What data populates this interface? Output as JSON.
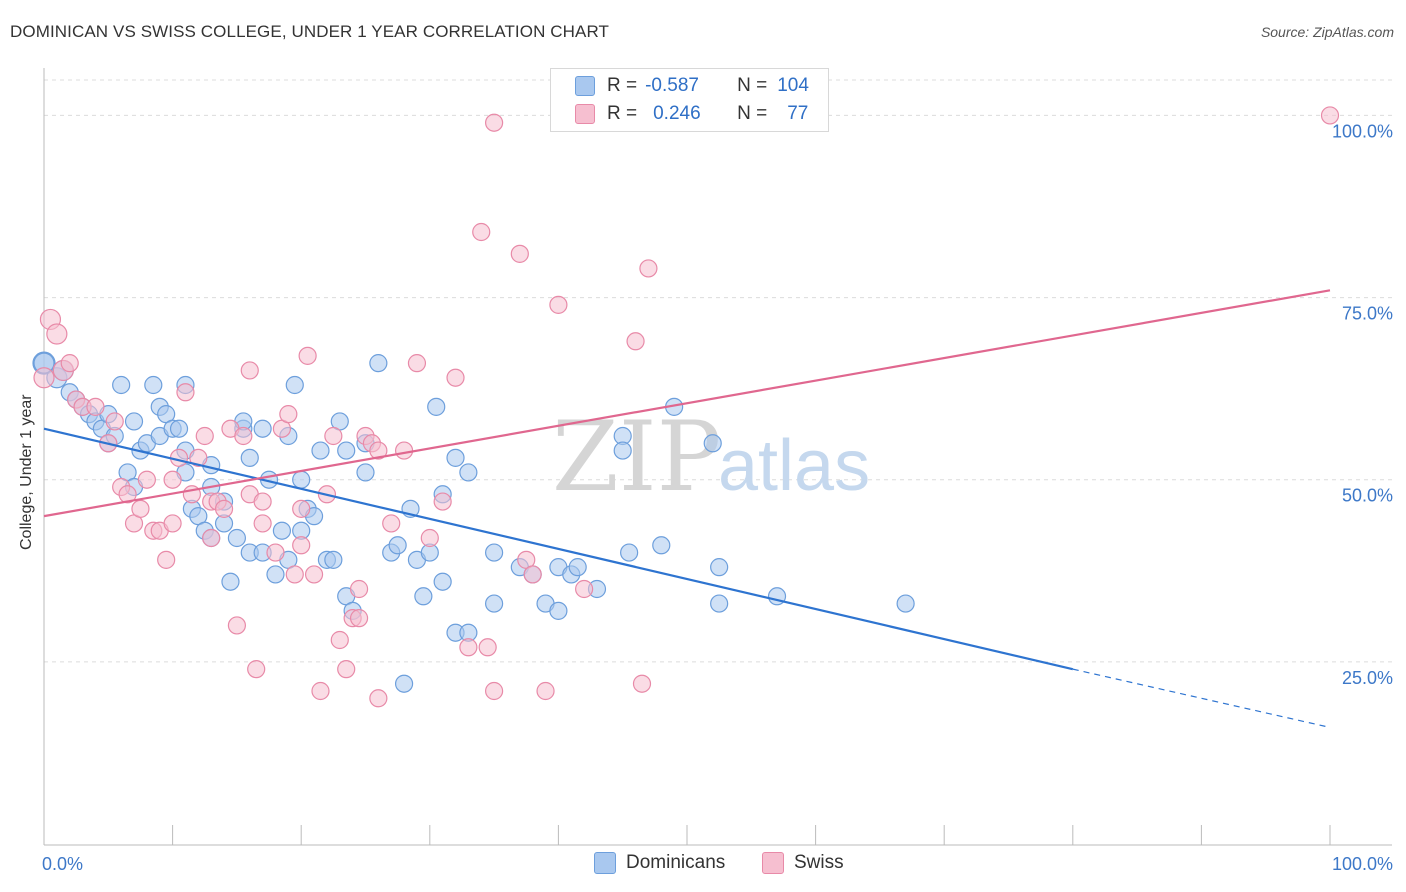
{
  "title": "DOMINICAN VS SWISS COLLEGE, UNDER 1 YEAR CORRELATION CHART",
  "source": "Source: ZipAtlas.com",
  "watermark": {
    "part1": "ZIP",
    "part2": "atlas"
  },
  "stats": [
    {
      "r_label": "R =",
      "r_value": "-0.587",
      "n_label": "N =",
      "n_value": "104",
      "color": "#a9c8ef",
      "border": "#6d9fdc"
    },
    {
      "r_label": "R =",
      "r_value": "0.246",
      "n_label": "N =",
      "n_value": "77",
      "color": "#f6bfd0",
      "border": "#e88aa8"
    }
  ],
  "legend": [
    {
      "label": "Dominicans",
      "color": "#a9c8ef",
      "border": "#6d9fdc"
    },
    {
      "label": "Swiss",
      "color": "#f6bfd0",
      "border": "#e88aa8"
    }
  ],
  "chart_data": {
    "type": "scatter",
    "ylabel": "College, Under 1 year",
    "xlim": [
      0,
      100
    ],
    "ylim": [
      0,
      105
    ],
    "x_tick_labels": [
      {
        "value": 0,
        "label": "0.0%"
      },
      {
        "value": 100,
        "label": "100.0%"
      }
    ],
    "y_tick_labels": [
      {
        "value": 25,
        "label": "25.0%"
      },
      {
        "value": 50,
        "label": "50.0%"
      },
      {
        "value": 75,
        "label": "75.0%"
      },
      {
        "value": 100,
        "label": "100.0%"
      }
    ],
    "grid": true,
    "series": [
      {
        "name": "Dominicans",
        "color": "#6d9fdc",
        "fill": "#a9c8ef",
        "trend": {
          "x0": 0,
          "y0": 57,
          "x1": 80,
          "y1": 24,
          "dashed_to_x": 100,
          "dashed_to_y": 16,
          "line_color": "#2e74d0"
        },
        "points": [
          [
            0,
            66
          ],
          [
            1,
            64
          ],
          [
            1.5,
            65
          ],
          [
            2,
            62
          ],
          [
            2.5,
            61
          ],
          [
            3,
            60
          ],
          [
            3.5,
            59
          ],
          [
            4,
            58
          ],
          [
            4.5,
            57
          ],
          [
            5,
            55
          ],
          [
            5,
            59
          ],
          [
            5.5,
            56
          ],
          [
            6,
            63
          ],
          [
            6.5,
            51
          ],
          [
            7,
            58
          ],
          [
            7,
            49
          ],
          [
            7.5,
            54
          ],
          [
            8,
            55
          ],
          [
            8.5,
            63
          ],
          [
            9,
            56
          ],
          [
            9,
            60
          ],
          [
            9.5,
            59
          ],
          [
            10,
            57
          ],
          [
            10.5,
            57
          ],
          [
            11,
            51
          ],
          [
            11,
            54
          ],
          [
            11,
            63
          ],
          [
            11.5,
            46
          ],
          [
            12,
            45
          ],
          [
            12.5,
            43
          ],
          [
            13,
            42
          ],
          [
            13,
            49
          ],
          [
            13,
            52
          ],
          [
            14,
            44
          ],
          [
            14,
            47
          ],
          [
            14.5,
            36
          ],
          [
            15,
            42
          ],
          [
            15.5,
            57
          ],
          [
            15.5,
            58
          ],
          [
            16,
            53
          ],
          [
            16,
            40
          ],
          [
            17,
            57
          ],
          [
            17,
            40
          ],
          [
            17.5,
            50
          ],
          [
            18,
            37
          ],
          [
            18.5,
            43
          ],
          [
            19,
            56
          ],
          [
            19,
            39
          ],
          [
            19.5,
            63
          ],
          [
            20,
            50
          ],
          [
            20,
            43
          ],
          [
            20.5,
            46
          ],
          [
            21,
            45
          ],
          [
            21.5,
            54
          ],
          [
            22,
            39
          ],
          [
            22.5,
            39
          ],
          [
            23,
            58
          ],
          [
            23.5,
            54
          ],
          [
            23.5,
            34
          ],
          [
            24,
            32
          ],
          [
            25,
            55
          ],
          [
            25,
            51
          ],
          [
            26,
            66
          ],
          [
            27,
            40
          ],
          [
            27.5,
            41
          ],
          [
            28,
            22
          ],
          [
            28.5,
            46
          ],
          [
            29,
            39
          ],
          [
            29.5,
            34
          ],
          [
            30,
            40
          ],
          [
            30.5,
            60
          ],
          [
            31,
            36
          ],
          [
            31,
            48
          ],
          [
            32,
            29
          ],
          [
            32,
            53
          ],
          [
            33,
            51
          ],
          [
            33,
            29
          ],
          [
            35,
            40
          ],
          [
            35,
            33
          ],
          [
            37,
            38
          ],
          [
            38,
            37
          ],
          [
            39,
            33
          ],
          [
            40,
            32
          ],
          [
            40,
            38
          ],
          [
            41,
            37
          ],
          [
            41.5,
            38
          ],
          [
            43,
            35
          ],
          [
            45,
            56
          ],
          [
            45,
            54
          ],
          [
            45.5,
            40
          ],
          [
            48,
            41
          ],
          [
            49,
            60
          ],
          [
            52,
            55
          ],
          [
            52.5,
            33
          ],
          [
            52.5,
            38
          ],
          [
            57,
            34
          ],
          [
            67,
            33
          ],
          [
            0,
            66
          ]
        ]
      },
      {
        "name": "Swiss",
        "color": "#e88aa8",
        "fill": "#f6bfd0",
        "trend": {
          "x0": 0,
          "y0": 45,
          "x1": 100,
          "y1": 76,
          "line_color": "#e0678f"
        },
        "points": [
          [
            0,
            64
          ],
          [
            0.5,
            72
          ],
          [
            1,
            70
          ],
          [
            1.5,
            65
          ],
          [
            2,
            66
          ],
          [
            2.5,
            61
          ],
          [
            3,
            60
          ],
          [
            4,
            60
          ],
          [
            5,
            55
          ],
          [
            5.5,
            58
          ],
          [
            6,
            49
          ],
          [
            6.5,
            48
          ],
          [
            7,
            44
          ],
          [
            7.5,
            46
          ],
          [
            8,
            50
          ],
          [
            8.5,
            43
          ],
          [
            9,
            43
          ],
          [
            9.5,
            39
          ],
          [
            10,
            44
          ],
          [
            10,
            50
          ],
          [
            10.5,
            53
          ],
          [
            11,
            62
          ],
          [
            11.5,
            48
          ],
          [
            12,
            53
          ],
          [
            12.5,
            56
          ],
          [
            13,
            47
          ],
          [
            13,
            42
          ],
          [
            13.5,
            47
          ],
          [
            14,
            46
          ],
          [
            14.5,
            57
          ],
          [
            15,
            30
          ],
          [
            15.5,
            56
          ],
          [
            16,
            65
          ],
          [
            16,
            48
          ],
          [
            16.5,
            24
          ],
          [
            17,
            47
          ],
          [
            17,
            44
          ],
          [
            18,
            40
          ],
          [
            18.5,
            57
          ],
          [
            19,
            59
          ],
          [
            19.5,
            37
          ],
          [
            20,
            46
          ],
          [
            20,
            41
          ],
          [
            20.5,
            67
          ],
          [
            21,
            37
          ],
          [
            21.5,
            21
          ],
          [
            22,
            48
          ],
          [
            22.5,
            56
          ],
          [
            23,
            28
          ],
          [
            23.5,
            24
          ],
          [
            24,
            31
          ],
          [
            24.5,
            35
          ],
          [
            24.5,
            31
          ],
          [
            25,
            56
          ],
          [
            25.5,
            55
          ],
          [
            26,
            54
          ],
          [
            26,
            20
          ],
          [
            27,
            44
          ],
          [
            28,
            54
          ],
          [
            29,
            66
          ],
          [
            30,
            42
          ],
          [
            31,
            47
          ],
          [
            32,
            64
          ],
          [
            33,
            27
          ],
          [
            34,
            84
          ],
          [
            34.5,
            27
          ],
          [
            35,
            99
          ],
          [
            35,
            21
          ],
          [
            37,
            81
          ],
          [
            37.5,
            39
          ],
          [
            38,
            37
          ],
          [
            39,
            21
          ],
          [
            40,
            74
          ],
          [
            42,
            35
          ],
          [
            46,
            69
          ],
          [
            46.5,
            22
          ],
          [
            47,
            79
          ],
          [
            100,
            100
          ]
        ]
      }
    ]
  }
}
